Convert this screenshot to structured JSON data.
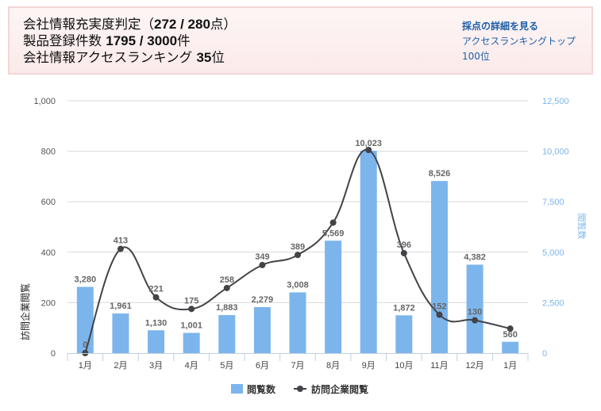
{
  "summary": {
    "line1_prefix": "会社情報充実度判定（",
    "line1_value": "272 / 280",
    "line1_suffix": "点）",
    "line2_prefix": "製品登録件数 ",
    "line2_value": "1795 / 3000",
    "line2_suffix": "件",
    "line3_prefix": "会社情報アクセスランキング ",
    "line3_value": "35",
    "line3_suffix": "位",
    "link_scoring_details": "採点の詳細を見る",
    "link_ranking_top100": "アクセスランキングトップ100位"
  },
  "chart_data": {
    "type": "bar+line",
    "categories": [
      "1月",
      "2月",
      "3月",
      "4月",
      "5月",
      "6月",
      "7月",
      "8月",
      "9月",
      "10月",
      "11月",
      "12月",
      "1月"
    ],
    "series": [
      {
        "name": "閲覧数",
        "type": "bar",
        "axis": "right",
        "color": "#7cb5ec",
        "values": [
          3280,
          1961,
          1130,
          1001,
          1883,
          2279,
          3008,
          5569,
          10023,
          1872,
          8526,
          4382,
          560
        ],
        "labels": [
          "3,280",
          "1,961",
          "1,130",
          "1,001",
          "1,883",
          "2,279",
          "3,008",
          "5,569",
          "10,023",
          "1,872",
          "8,526",
          "4,382",
          "560"
        ]
      },
      {
        "name": "訪問企業閲覧",
        "type": "line",
        "axis": "left",
        "color": "#434348",
        "values": [
          0,
          413,
          221,
          175,
          258,
          349,
          389,
          517,
          805,
          396,
          152,
          130,
          97
        ],
        "labels": [
          "0",
          "413",
          "221",
          "175",
          "258",
          "349",
          "389",
          "",
          "",
          "396",
          "152",
          "130",
          ""
        ]
      }
    ],
    "left_axis": {
      "label": "訪問企業閲覧",
      "range": [
        0,
        1000
      ],
      "ticks": [
        "0",
        "200",
        "400",
        "600",
        "800",
        "1,000"
      ],
      "tick_values": [
        0,
        200,
        400,
        600,
        800,
        1000
      ]
    },
    "right_axis": {
      "label": "閲覧数",
      "range": [
        0,
        12500
      ],
      "ticks": [
        "0",
        "2,500",
        "5,000",
        "7,500",
        "10,000",
        "12,500"
      ],
      "tick_values": [
        0,
        2500,
        5000,
        7500,
        10000,
        12500
      ]
    },
    "grid": true,
    "legend_position": "bottom-center"
  }
}
